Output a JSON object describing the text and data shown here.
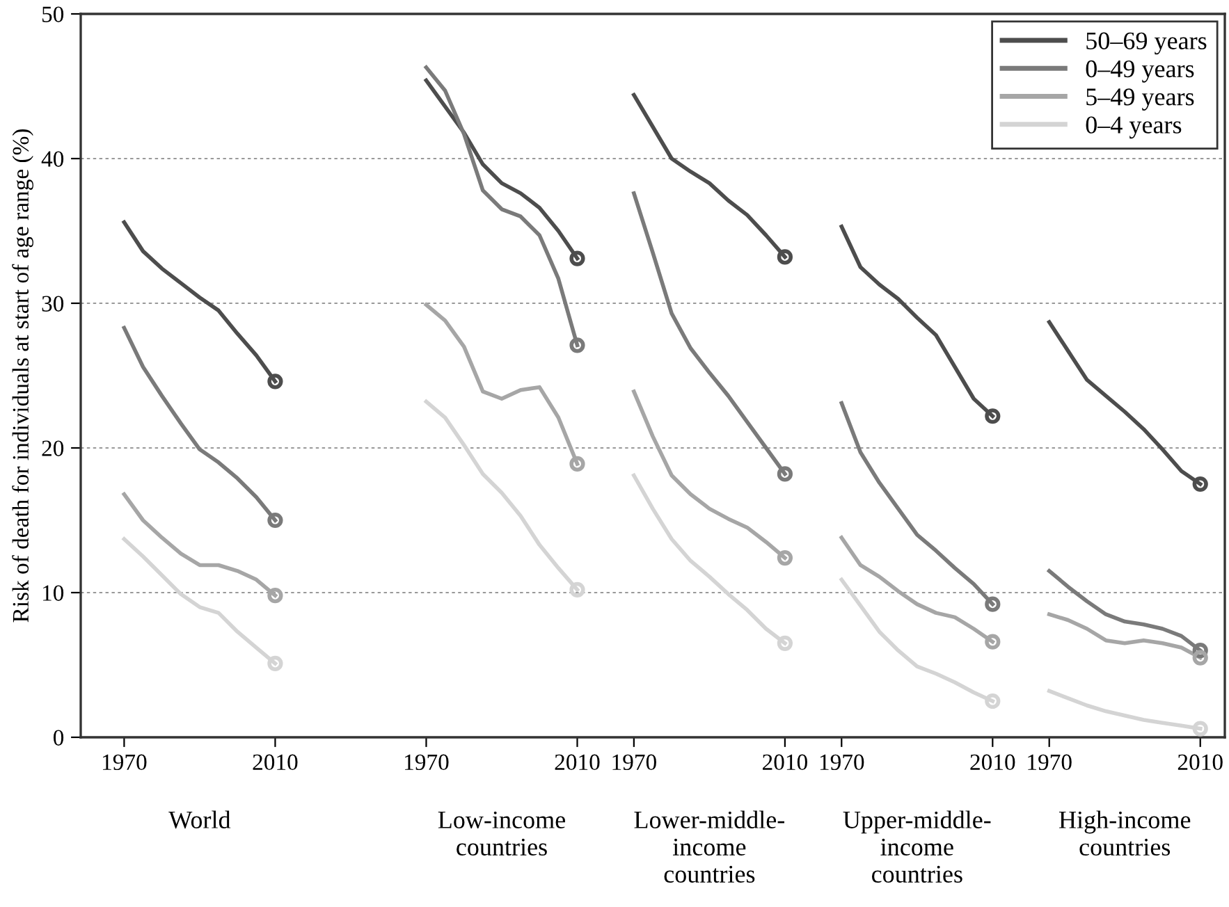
{
  "chart_data": {
    "type": "line",
    "ylabel": "Risk of death for individuals at start of age range (%)",
    "categories": [
      "1970",
      null,
      null,
      null,
      null,
      null,
      null,
      null,
      "2010",
      null,
      null,
      null,
      null,
      null,
      null,
      null,
      "1970",
      null,
      null,
      null,
      null,
      null,
      null,
      null,
      "2010",
      null,
      null,
      "1970",
      null,
      null,
      null,
      null,
      null,
      null,
      null,
      "2010",
      null,
      null,
      "1970",
      null,
      null,
      null,
      null,
      null,
      null,
      null,
      "2010",
      null,
      null,
      "1970",
      null,
      null,
      null,
      null,
      null,
      null,
      null,
      "2010"
    ],
    "ylim": [
      0,
      50
    ],
    "yticks": [
      0,
      10,
      20,
      30,
      40,
      50
    ],
    "grid": "y",
    "legend": "top right",
    "annotations": [
      "World",
      "Low-income\ncountries",
      "Lower-middle-\nincome\ncountries",
      "Upper-middle-\nincome\ncountries",
      "High-income\ncountries"
    ],
    "series": [
      {
        "name": "50–69 years",
        "color": "#4d4d4d",
        "values": [
          35.6,
          33.6,
          32.4,
          31.4,
          30.4,
          29.5,
          27.9,
          26.4,
          24.6,
          null,
          null,
          null,
          null,
          null,
          null,
          null,
          45.4,
          43.6,
          41.8,
          39.6,
          38.3,
          37.6,
          36.6,
          35.0,
          33.1,
          null,
          null,
          44.4,
          42.2,
          40.0,
          39.1,
          38.3,
          37.1,
          36.1,
          34.7,
          33.2,
          null,
          null,
          35.3,
          32.5,
          31.3,
          30.3,
          29.0,
          27.8,
          25.6,
          23.4,
          22.2,
          null,
          null,
          28.7,
          26.7,
          24.7,
          23.6,
          22.5,
          21.3,
          19.9,
          18.4,
          17.5
        ]
      },
      {
        "name": "0–49 years",
        "color": "#7a7a7a",
        "values": [
          28.3,
          25.6,
          23.6,
          21.7,
          19.9,
          19.0,
          17.9,
          16.6,
          15.0,
          null,
          null,
          null,
          null,
          null,
          null,
          null,
          46.3,
          44.7,
          41.7,
          37.8,
          36.5,
          36.0,
          34.7,
          31.7,
          27.1,
          null,
          null,
          37.6,
          33.5,
          29.3,
          26.9,
          25.2,
          23.6,
          21.8,
          20.0,
          18.2,
          null,
          null,
          23.1,
          19.7,
          17.6,
          15.8,
          14.0,
          12.9,
          11.7,
          10.6,
          9.2,
          null,
          null,
          11.5,
          10.4,
          9.4,
          8.5,
          8.0,
          7.8,
          7.5,
          7.0,
          6.0
        ]
      },
      {
        "name": "5–49 years",
        "color": "#a6a6a6",
        "values": [
          16.8,
          15.0,
          13.8,
          12.7,
          11.9,
          11.9,
          11.5,
          10.9,
          9.8,
          null,
          null,
          null,
          null,
          null,
          null,
          null,
          29.9,
          28.8,
          27.0,
          23.9,
          23.4,
          24.0,
          24.2,
          22.1,
          18.9,
          null,
          null,
          23.9,
          20.8,
          18.1,
          16.8,
          15.8,
          15.1,
          14.5,
          13.5,
          12.4,
          null,
          null,
          13.8,
          11.9,
          11.1,
          10.1,
          9.2,
          8.6,
          8.3,
          7.5,
          6.6,
          null,
          null,
          8.5,
          8.1,
          7.5,
          6.7,
          6.5,
          6.7,
          6.5,
          6.2,
          5.5
        ]
      },
      {
        "name": "0–4 years",
        "color": "#d4d4d4",
        "values": [
          13.7,
          12.5,
          11.2,
          9.9,
          9.0,
          8.6,
          7.3,
          6.2,
          5.1,
          null,
          null,
          null,
          null,
          null,
          null,
          null,
          23.2,
          22.1,
          20.2,
          18.2,
          16.9,
          15.3,
          13.3,
          11.7,
          10.2,
          null,
          null,
          18.1,
          15.8,
          13.7,
          12.2,
          11.1,
          9.9,
          8.8,
          7.5,
          6.5,
          null,
          null,
          10.9,
          9.1,
          7.3,
          6.0,
          4.9,
          4.4,
          3.8,
          3.1,
          2.5,
          null,
          null,
          3.2,
          2.7,
          2.2,
          1.8,
          1.5,
          1.2,
          1.0,
          0.8,
          0.6
        ]
      }
    ]
  }
}
